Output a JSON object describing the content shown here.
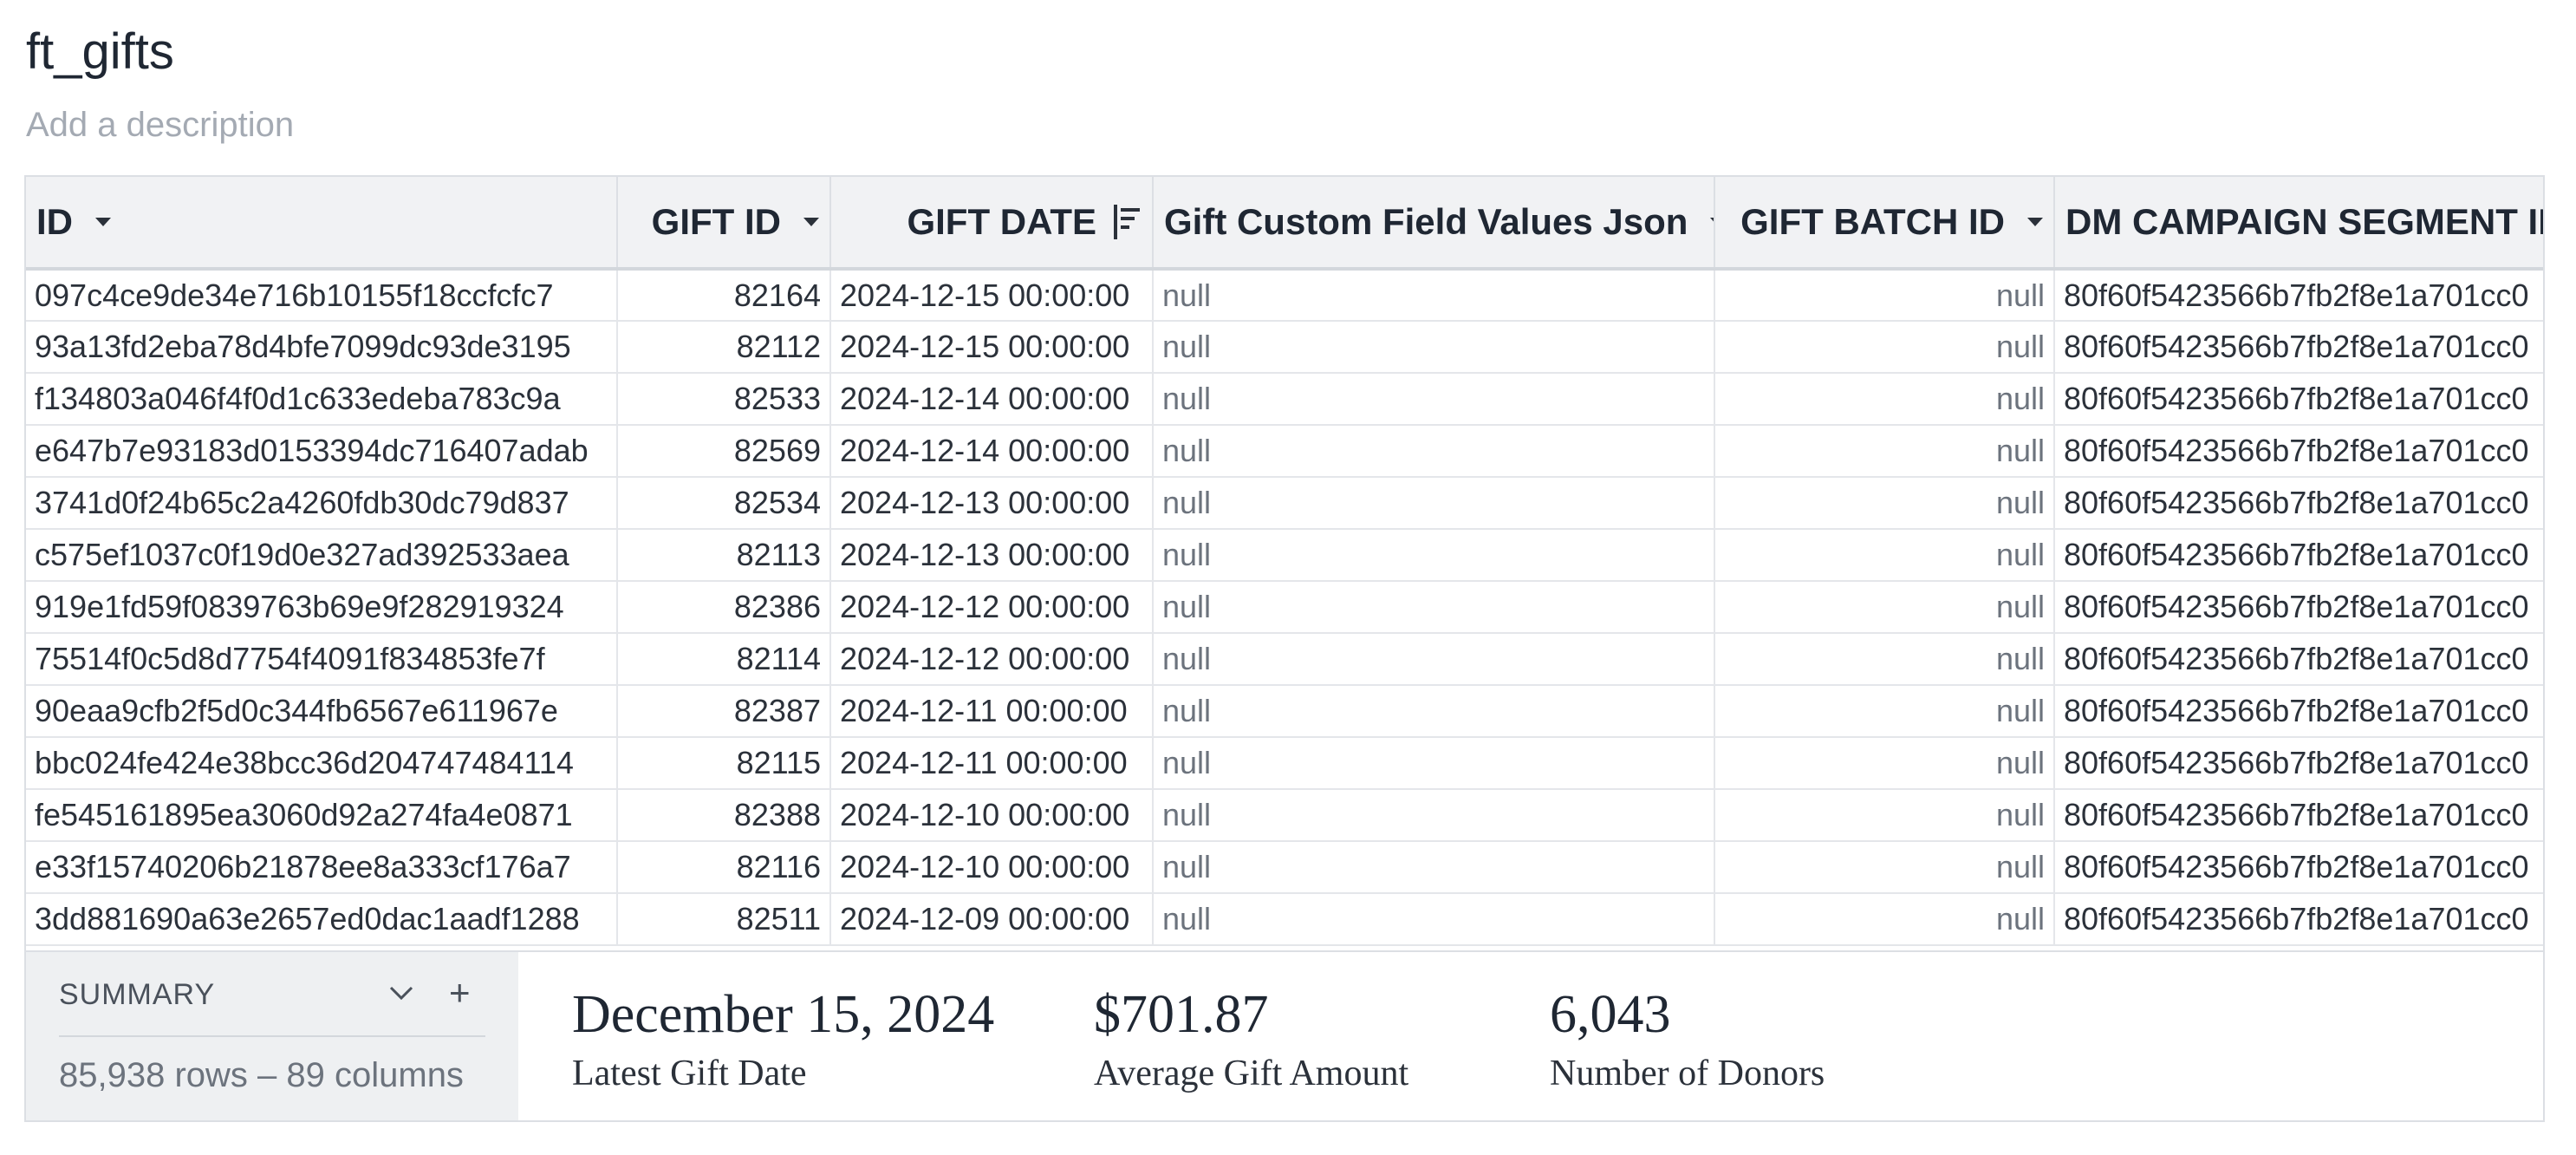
{
  "page": {
    "title": "ft_gifts",
    "description_placeholder": "Add a description"
  },
  "table": {
    "columns": [
      {
        "label": "ID",
        "icon": "caret-down-icon"
      },
      {
        "label": "GIFT ID",
        "icon": "caret-down-icon"
      },
      {
        "label": "GIFT DATE",
        "icon": "sort-descending-icon"
      },
      {
        "label": "Gift Custom Field Values Json",
        "icon": "caret-down-icon"
      },
      {
        "label": "GIFT BATCH ID",
        "icon": "caret-down-icon"
      },
      {
        "label": "DM CAMPAIGN SEGMENT ID",
        "icon": ""
      }
    ],
    "rows": [
      [
        "097c4ce9de34e716b10155f18ccfcfc7",
        "82164",
        "2024-12-15 00:00:00",
        "null",
        "null",
        "80f60f5423566b7fb2f8e1a701cc0"
      ],
      [
        "93a13fd2eba78d4bfe7099dc93de3195",
        "82112",
        "2024-12-15 00:00:00",
        "null",
        "null",
        "80f60f5423566b7fb2f8e1a701cc0"
      ],
      [
        "f134803a046f4f0d1c633edeba783c9a",
        "82533",
        "2024-12-14 00:00:00",
        "null",
        "null",
        "80f60f5423566b7fb2f8e1a701cc0"
      ],
      [
        "e647b7e93183d0153394dc716407adab",
        "82569",
        "2024-12-14 00:00:00",
        "null",
        "null",
        "80f60f5423566b7fb2f8e1a701cc0"
      ],
      [
        "3741d0f24b65c2a4260fdb30dc79d837",
        "82534",
        "2024-12-13 00:00:00",
        "null",
        "null",
        "80f60f5423566b7fb2f8e1a701cc0"
      ],
      [
        "c575ef1037c0f19d0e327ad392533aea",
        "82113",
        "2024-12-13 00:00:00",
        "null",
        "null",
        "80f60f5423566b7fb2f8e1a701cc0"
      ],
      [
        "919e1fd59f0839763b69e9f282919324",
        "82386",
        "2024-12-12 00:00:00",
        "null",
        "null",
        "80f60f5423566b7fb2f8e1a701cc0"
      ],
      [
        "75514f0c5d8d7754f4091f834853fe7f",
        "82114",
        "2024-12-12 00:00:00",
        "null",
        "null",
        "80f60f5423566b7fb2f8e1a701cc0"
      ],
      [
        "90eaa9cfb2f5d0c344fb6567e611967e",
        "82387",
        "2024-12-11 00:00:00",
        "null",
        "null",
        "80f60f5423566b7fb2f8e1a701cc0"
      ],
      [
        "bbc024fe424e38bcc36d204747484114",
        "82115",
        "2024-12-11 00:00:00",
        "null",
        "null",
        "80f60f5423566b7fb2f8e1a701cc0"
      ],
      [
        "fe545161895ea3060d92a274fa4e0871",
        "82388",
        "2024-12-10 00:00:00",
        "null",
        "null",
        "80f60f5423566b7fb2f8e1a701cc0"
      ],
      [
        "e33f15740206b21878ee8a333cf176a7",
        "82116",
        "2024-12-10 00:00:00",
        "null",
        "null",
        "80f60f5423566b7fb2f8e1a701cc0"
      ],
      [
        "3dd881690a63e2657ed0dac1aadf1288",
        "82511",
        "2024-12-09 00:00:00",
        "null",
        "null",
        "80f60f5423566b7fb2f8e1a701cc0"
      ]
    ]
  },
  "summary": {
    "label": "SUMMARY",
    "toggle_icon": "chevron-down-icon",
    "add_icon": "plus-icon",
    "count_text": "85,938 rows – 89 columns",
    "metrics": [
      {
        "value": "December 15, 2024",
        "label": "Latest Gift Date"
      },
      {
        "value": "$701.87",
        "label": "Average Gift Amount"
      },
      {
        "value": "6,043",
        "label": "Number of Donors"
      }
    ]
  }
}
